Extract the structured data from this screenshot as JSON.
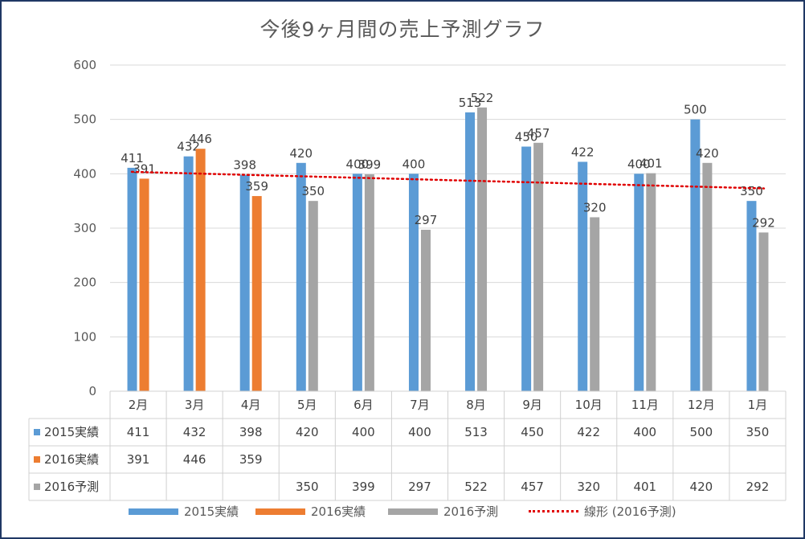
{
  "chart_data": {
    "type": "bar",
    "title": "今後9ヶ月間の売上予測グラフ",
    "categories": [
      "2月",
      "3月",
      "4月",
      "5月",
      "6月",
      "7月",
      "8月",
      "9月",
      "10月",
      "11月",
      "12月",
      "1月"
    ],
    "series": [
      {
        "name": "2015実績",
        "color": "#5b9bd5",
        "values": [
          411,
          432,
          398,
          420,
          400,
          400,
          513,
          450,
          422,
          400,
          500,
          350
        ]
      },
      {
        "name": "2016実績",
        "color": "#ed7d31",
        "values": [
          391,
          446,
          359,
          null,
          null,
          null,
          null,
          null,
          null,
          null,
          null,
          null
        ]
      },
      {
        "name": "2016予測",
        "color": "#a5a5a5",
        "values": [
          null,
          null,
          null,
          350,
          399,
          297,
          522,
          457,
          320,
          401,
          420,
          292
        ]
      }
    ],
    "trendline": {
      "name": "線形 (2016予測)",
      "color": "#e00000",
      "style": "dotted",
      "series": "2016予測"
    },
    "ylim": [
      0,
      600
    ],
    "yticks": [
      0,
      100,
      200,
      300,
      400,
      500,
      600
    ],
    "grid": true,
    "data_labels": true,
    "data_table": true,
    "legend_position": "bottom"
  }
}
